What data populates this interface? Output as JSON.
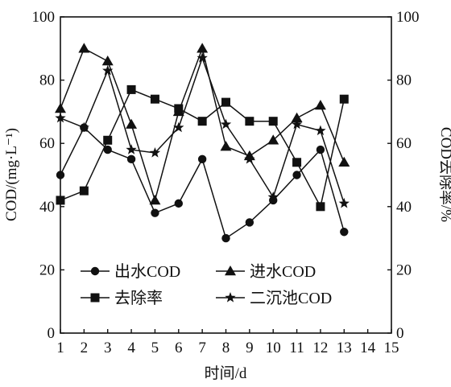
{
  "chart_data": {
    "type": "line",
    "x": [
      1,
      2,
      3,
      4,
      5,
      6,
      7,
      8,
      9,
      10,
      11,
      12,
      13
    ],
    "xlabel": "时间/d",
    "ylabel": "COD/(mg·L⁻¹)",
    "y2label": "COD去除率/%",
    "xlim": [
      1,
      15
    ],
    "ylim": [
      0,
      100
    ],
    "y2lim": [
      0,
      100
    ],
    "xticks": [
      1,
      2,
      3,
      4,
      5,
      6,
      7,
      8,
      9,
      10,
      11,
      12,
      13,
      14,
      15
    ],
    "yticks": [
      0,
      20,
      40,
      60,
      80,
      100
    ],
    "y2ticks": [
      0,
      20,
      40,
      60,
      80,
      100
    ],
    "grid": false,
    "legend": "bottom-center",
    "series": [
      {
        "name": "出水COD",
        "marker": "circle",
        "axis": "left",
        "values": [
          50,
          65,
          58,
          55,
          38,
          41,
          55,
          30,
          35,
          42,
          50,
          58,
          32
        ]
      },
      {
        "name": "进水COD",
        "marker": "triangle",
        "axis": "left",
        "values": [
          71,
          90,
          86,
          66,
          42,
          70,
          90,
          59,
          56,
          61,
          68,
          72,
          54
        ]
      },
      {
        "name": "去除率",
        "marker": "square",
        "axis": "right",
        "values": [
          42,
          45,
          61,
          77,
          74,
          71,
          67,
          73,
          67,
          67,
          54,
          40,
          74
        ]
      },
      {
        "name": "二沉池COD",
        "marker": "star",
        "axis": "left",
        "values": [
          68,
          65,
          83,
          58,
          57,
          65,
          87,
          66,
          55,
          43,
          66,
          64,
          41
        ]
      }
    ]
  }
}
